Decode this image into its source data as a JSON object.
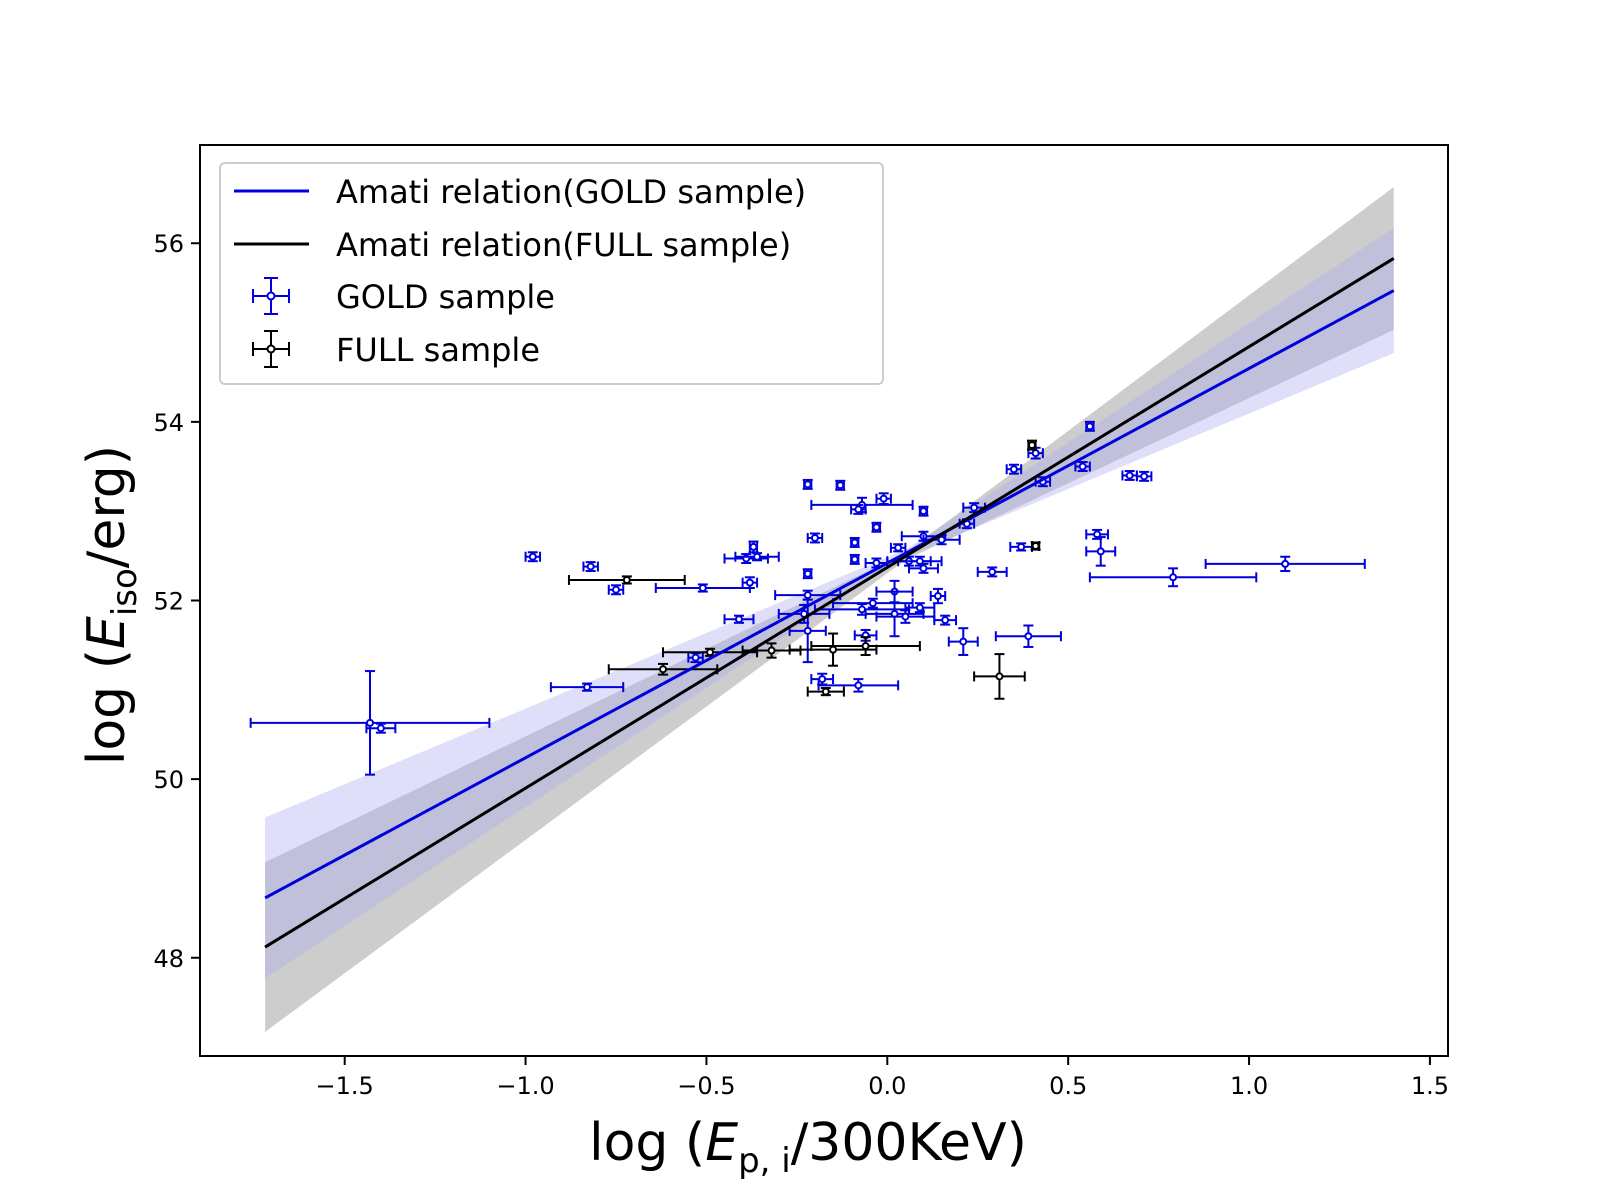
{
  "chart_data": {
    "type": "scatter",
    "xlabel_prefix": "log (",
    "xlabel_var": "E",
    "xlabel_sub": "p, i",
    "xlabel_suffix": "/300KeV)",
    "ylabel_prefix": "log (",
    "ylabel_var": "E",
    "ylabel_sub": "iso",
    "ylabel_suffix": "/erg)",
    "xlim": [
      -1.9,
      1.55
    ],
    "ylim": [
      46.9,
      57.1
    ],
    "xticks": [
      -1.5,
      -1.0,
      -0.5,
      0.0,
      0.5,
      1.0,
      1.5
    ],
    "xtick_labels": [
      "−1.5",
      "−1.0",
      "−0.5",
      "0.0",
      "0.5",
      "1.0",
      "1.5"
    ],
    "yticks": [
      48,
      50,
      52,
      54,
      56
    ],
    "ytick_labels": [
      "48",
      "50",
      "52",
      "54",
      "56"
    ],
    "grid": false,
    "legend_position": "top-left",
    "colors": {
      "gold": "#0000dd",
      "full": "#000000",
      "gold_band": "#aaaaf2",
      "full_band": "#888888"
    },
    "fits": [
      {
        "name": "Amati relation(GOLD sample)",
        "x": [
          -1.72,
          1.4
        ],
        "y": [
          48.67,
          55.47
        ],
        "band_width_at_ends": [
          0.9,
          0.7
        ],
        "band_waist_x": 0.05
      },
      {
        "name": "Amati relation(FULL sample)",
        "x": [
          -1.72,
          1.4
        ],
        "y": [
          48.12,
          55.83
        ],
        "band_width_at_ends": [
          0.95,
          0.8
        ],
        "band_waist_x": 0.05
      }
    ],
    "series": [
      {
        "name": "GOLD sample",
        "points": [
          {
            "x": -1.43,
            "y": 50.63,
            "xerr": 0.33,
            "yerr": 0.58
          },
          {
            "x": -1.4,
            "y": 50.57,
            "xerr": 0.04,
            "yerr": 0.05
          },
          {
            "x": -0.83,
            "y": 51.03,
            "xerr": 0.1,
            "yerr": 0.04
          },
          {
            "x": -0.98,
            "y": 52.49,
            "xerr": 0.02,
            "yerr": 0.05
          },
          {
            "x": -0.82,
            "y": 52.38,
            "xerr": 0.02,
            "yerr": 0.05
          },
          {
            "x": -0.75,
            "y": 52.12,
            "xerr": 0.02,
            "yerr": 0.05
          },
          {
            "x": -0.51,
            "y": 52.14,
            "xerr": 0.13,
            "yerr": 0.04
          },
          {
            "x": -0.53,
            "y": 51.36,
            "xerr": 0.02,
            "yerr": 0.05
          },
          {
            "x": -0.41,
            "y": 51.79,
            "xerr": 0.04,
            "yerr": 0.04
          },
          {
            "x": -0.39,
            "y": 52.47,
            "xerr": 0.06,
            "yerr": 0.05
          },
          {
            "x": -0.38,
            "y": 52.2,
            "xerr": 0.02,
            "yerr": 0.06
          },
          {
            "x": -0.37,
            "y": 52.6,
            "xerr": 0.01,
            "yerr": 0.06
          },
          {
            "x": -0.36,
            "y": 52.49,
            "xerr": 0.06,
            "yerr": 0.04
          },
          {
            "x": -0.22,
            "y": 53.3,
            "xerr": 0.01,
            "yerr": 0.05
          },
          {
            "x": -0.22,
            "y": 52.3,
            "xerr": 0.01,
            "yerr": 0.05
          },
          {
            "x": -0.2,
            "y": 52.7,
            "xerr": 0.02,
            "yerr": 0.05
          },
          {
            "x": -0.22,
            "y": 52.06,
            "xerr": 0.09,
            "yerr": 0.05
          },
          {
            "x": -0.23,
            "y": 51.85,
            "xerr": 0.07,
            "yerr": 0.1
          },
          {
            "x": -0.22,
            "y": 51.66,
            "xerr": 0.05,
            "yerr": 0.35
          },
          {
            "x": -0.18,
            "y": 51.12,
            "xerr": 0.03,
            "yerr": 0.06
          },
          {
            "x": -0.13,
            "y": 53.29,
            "xerr": 0.01,
            "yerr": 0.05
          },
          {
            "x": -0.07,
            "y": 53.07,
            "xerr": 0.14,
            "yerr": 0.08
          },
          {
            "x": -0.08,
            "y": 53.02,
            "xerr": 0.02,
            "yerr": 0.05
          },
          {
            "x": -0.01,
            "y": 53.14,
            "xerr": 0.02,
            "yerr": 0.06
          },
          {
            "x": -0.03,
            "y": 52.82,
            "xerr": 0.01,
            "yerr": 0.05
          },
          {
            "x": -0.09,
            "y": 52.65,
            "xerr": 0.01,
            "yerr": 0.05
          },
          {
            "x": -0.09,
            "y": 52.46,
            "xerr": 0.01,
            "yerr": 0.05
          },
          {
            "x": -0.03,
            "y": 52.42,
            "xerr": 0.03,
            "yerr": 0.05
          },
          {
            "x": 0.03,
            "y": 52.59,
            "xerr": 0.02,
            "yerr": 0.04
          },
          {
            "x": 0.06,
            "y": 52.44,
            "xerr": 0.06,
            "yerr": 0.05
          },
          {
            "x": 0.1,
            "y": 53.0,
            "xerr": 0.01,
            "yerr": 0.05
          },
          {
            "x": 0.1,
            "y": 52.72,
            "xerr": 0.06,
            "yerr": 0.05
          },
          {
            "x": 0.09,
            "y": 52.44,
            "xerr": 0.06,
            "yerr": 0.05
          },
          {
            "x": 0.1,
            "y": 52.36,
            "xerr": 0.04,
            "yerr": 0.05
          },
          {
            "x": 0.02,
            "y": 52.1,
            "xerr": 0.05,
            "yerr": 0.12
          },
          {
            "x": 0.02,
            "y": 51.85,
            "xerr": 0.08,
            "yerr": 0.25
          },
          {
            "x": -0.04,
            "y": 51.97,
            "xerr": 0.11,
            "yerr": 0.05
          },
          {
            "x": -0.07,
            "y": 51.9,
            "xerr": 0.13,
            "yerr": 0.06
          },
          {
            "x": 0.05,
            "y": 51.82,
            "xerr": 0.08,
            "yerr": 0.07
          },
          {
            "x": 0.09,
            "y": 51.92,
            "xerr": 0.04,
            "yerr": 0.05
          },
          {
            "x": 0.14,
            "y": 52.05,
            "xerr": 0.02,
            "yerr": 0.08
          },
          {
            "x": 0.16,
            "y": 51.78,
            "xerr": 0.03,
            "yerr": 0.05
          },
          {
            "x": -0.06,
            "y": 51.61,
            "xerr": 0.03,
            "yerr": 0.06
          },
          {
            "x": -0.08,
            "y": 51.05,
            "xerr": 0.11,
            "yerr": 0.07
          },
          {
            "x": 0.15,
            "y": 52.68,
            "xerr": 0.05,
            "yerr": 0.05
          },
          {
            "x": 0.21,
            "y": 51.54,
            "xerr": 0.04,
            "yerr": 0.15
          },
          {
            "x": 0.22,
            "y": 52.86,
            "xerr": 0.02,
            "yerr": 0.05
          },
          {
            "x": 0.24,
            "y": 53.04,
            "xerr": 0.03,
            "yerr": 0.05
          },
          {
            "x": 0.29,
            "y": 52.32,
            "xerr": 0.04,
            "yerr": 0.05
          },
          {
            "x": 0.35,
            "y": 53.47,
            "xerr": 0.02,
            "yerr": 0.05
          },
          {
            "x": 0.37,
            "y": 52.6,
            "xerr": 0.03,
            "yerr": 0.04
          },
          {
            "x": 0.41,
            "y": 53.65,
            "xerr": 0.02,
            "yerr": 0.06
          },
          {
            "x": 0.43,
            "y": 53.33,
            "xerr": 0.02,
            "yerr": 0.05
          },
          {
            "x": 0.39,
            "y": 51.6,
            "xerr": 0.09,
            "yerr": 0.12
          },
          {
            "x": 0.54,
            "y": 53.5,
            "xerr": 0.02,
            "yerr": 0.05
          },
          {
            "x": 0.56,
            "y": 53.95,
            "xerr": 0.01,
            "yerr": 0.05
          },
          {
            "x": 0.58,
            "y": 52.74,
            "xerr": 0.03,
            "yerr": 0.05
          },
          {
            "x": 0.59,
            "y": 52.55,
            "xerr": 0.04,
            "yerr": 0.16
          },
          {
            "x": 0.67,
            "y": 53.4,
            "xerr": 0.02,
            "yerr": 0.05
          },
          {
            "x": 0.71,
            "y": 53.39,
            "xerr": 0.02,
            "yerr": 0.05
          },
          {
            "x": 0.79,
            "y": 52.26,
            "xerr": 0.23,
            "yerr": 0.1
          },
          {
            "x": 1.1,
            "y": 52.41,
            "xerr": 0.22,
            "yerr": 0.08
          }
        ]
      },
      {
        "name": "FULL sample",
        "points": [
          {
            "x": -0.72,
            "y": 52.23,
            "xerr": 0.16,
            "yerr": 0.04
          },
          {
            "x": -0.62,
            "y": 51.23,
            "xerr": 0.15,
            "yerr": 0.06
          },
          {
            "x": -0.49,
            "y": 51.42,
            "xerr": 0.13,
            "yerr": 0.04
          },
          {
            "x": -0.32,
            "y": 51.44,
            "xerr": 0.08,
            "yerr": 0.08
          },
          {
            "x": -0.15,
            "y": 51.45,
            "xerr": 0.12,
            "yerr": 0.18
          },
          {
            "x": -0.06,
            "y": 51.49,
            "xerr": 0.15,
            "yerr": 0.1
          },
          {
            "x": -0.17,
            "y": 50.98,
            "xerr": 0.05,
            "yerr": 0.04
          },
          {
            "x": 0.31,
            "y": 51.15,
            "xerr": 0.07,
            "yerr": 0.25
          },
          {
            "x": 0.4,
            "y": 53.74,
            "xerr": 0.01,
            "yerr": 0.05
          },
          {
            "x": 0.41,
            "y": 52.61,
            "xerr": 0.01,
            "yerr": 0.04
          }
        ]
      }
    ]
  }
}
